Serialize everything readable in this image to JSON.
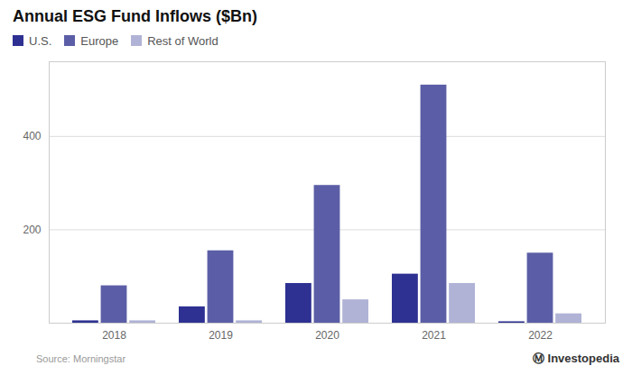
{
  "chart_data": {
    "type": "bar",
    "title": "Annual ESG Fund Inflows ($Bn)",
    "categories": [
      "2018",
      "2019",
      "2020",
      "2021",
      "2022"
    ],
    "series": [
      {
        "name": "U.S.",
        "color": "#2e3192",
        "values": [
          5,
          35,
          85,
          105,
          3
        ]
      },
      {
        "name": "Europe",
        "color": "#5b5ea6",
        "values": [
          80,
          155,
          295,
          510,
          150
        ]
      },
      {
        "name": "Rest of World",
        "color": "#b0b3d6",
        "values": [
          5,
          5,
          50,
          85,
          20
        ]
      }
    ],
    "ylim": [
      0,
      560
    ],
    "yticks": [
      200,
      400
    ],
    "grid": true,
    "legend": "top",
    "annotations": [
      "Source: Morningstar",
      "Ⓜ Investopedia"
    ]
  }
}
